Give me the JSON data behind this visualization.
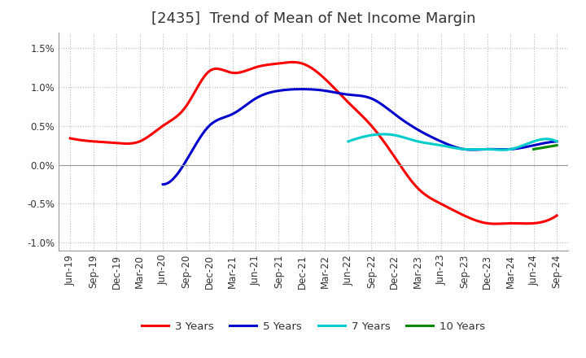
{
  "title": "[2435]  Trend of Mean of Net Income Margin",
  "ylim": [
    -0.011,
    0.017
  ],
  "yticks": [
    -0.01,
    -0.005,
    0.0,
    0.005,
    0.01,
    0.015
  ],
  "ytick_labels": [
    "-1.0%",
    "-0.5%",
    "0.0%",
    "0.5%",
    "1.0%",
    "1.5%"
  ],
  "x_labels": [
    "Jun-19",
    "Sep-19",
    "Dec-19",
    "Mar-20",
    "Jun-20",
    "Sep-20",
    "Dec-20",
    "Mar-21",
    "Jun-21",
    "Sep-21",
    "Dec-21",
    "Mar-22",
    "Jun-22",
    "Sep-22",
    "Dec-22",
    "Mar-23",
    "Jun-23",
    "Sep-23",
    "Dec-23",
    "Mar-24",
    "Jun-24",
    "Sep-24"
  ],
  "series_3y": [
    0.0034,
    0.003,
    0.0028,
    0.003,
    0.005,
    0.0075,
    0.012,
    0.0118,
    0.0125,
    0.013,
    0.013,
    0.011,
    0.008,
    0.005,
    0.001,
    -0.003,
    -0.005,
    -0.0065,
    -0.0075,
    -0.0075,
    -0.0075,
    -0.0065
  ],
  "series_5y": [
    null,
    null,
    null,
    null,
    -0.0025,
    0.0005,
    0.005,
    0.0065,
    0.0085,
    0.0095,
    0.0097,
    0.0095,
    0.009,
    0.0085,
    0.0065,
    0.0045,
    0.003,
    0.002,
    0.002,
    0.002,
    0.0025,
    0.003
  ],
  "series_7y": [
    null,
    null,
    null,
    null,
    null,
    null,
    null,
    null,
    null,
    null,
    null,
    null,
    0.003,
    0.0038,
    0.0038,
    0.003,
    0.0025,
    0.002,
    0.002,
    0.002,
    0.003,
    0.003
  ],
  "series_10y": [
    null,
    null,
    null,
    null,
    null,
    null,
    null,
    null,
    null,
    null,
    null,
    null,
    null,
    null,
    null,
    null,
    null,
    null,
    null,
    null,
    0.002,
    0.0025
  ],
  "colors": {
    "3y": "#ff0000",
    "5y": "#0000cc",
    "7y": "#00cccc",
    "10y": "#008800"
  },
  "line_width": 2.2,
  "background_color": "#ffffff",
  "grid_color": "#bbbbbb",
  "title_fontsize": 13,
  "tick_fontsize": 8.5
}
